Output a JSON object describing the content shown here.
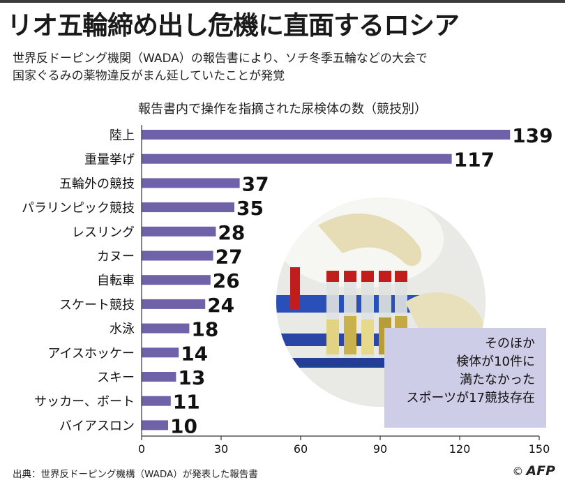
{
  "title": "リオ五輪締め出し危機に直面するロシア",
  "subtitle": [
    "世界反ドーピング機関（WADA）の報告書により、ソチ冬季五輪などの大会で",
    "国家ぐるみの薬物違反がまん延していたことが発覚"
  ],
  "note": [
    "そのほか",
    "検体が10件に",
    "満たなかった",
    "スポーツが17競技存在"
  ],
  "source": "出典：世界反ドーピング機構（WADA）が発表した報告書",
  "credit": {
    "copyright": "©",
    "agency": "AFP"
  },
  "colors": {
    "bar": "#6f62a8",
    "note_box": "#cdcde8",
    "axis": "#333333"
  },
  "chart_data": {
    "type": "bar",
    "orientation": "horizontal",
    "title": "報告書内で操作を指摘された尿検体の数（競技別）",
    "categories": [
      "陸上",
      "重量挙げ",
      "五輪外の競技",
      "パラリンピック競技",
      "レスリング",
      "カヌー",
      "自転車",
      "スケート競技",
      "水泳",
      "アイスホッケー",
      "スキー",
      "サッカー、ボート",
      "バイアスロン"
    ],
    "values": [
      139,
      117,
      37,
      35,
      28,
      27,
      26,
      24,
      18,
      14,
      13,
      11,
      10
    ],
    "value_labels": [
      "139",
      "117",
      "37",
      "35",
      "28",
      "27",
      "26",
      "24",
      "18",
      "14",
      "13",
      "11",
      "10"
    ],
    "xlim": [
      0,
      150
    ],
    "ticks": [
      0,
      30,
      60,
      90,
      120,
      150
    ],
    "tick_labels": [
      "0",
      "30",
      "60",
      "90",
      "120",
      "150"
    ],
    "grid": false
  }
}
